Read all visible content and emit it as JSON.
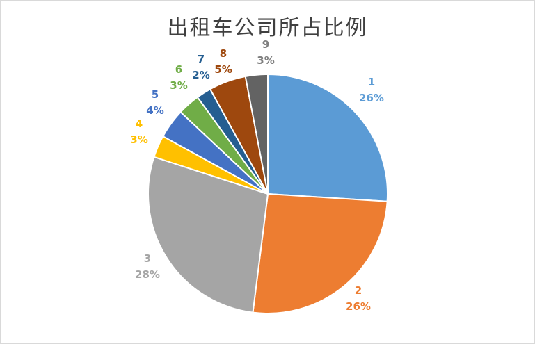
{
  "chart_data": {
    "type": "pie",
    "title": "出租车公司所占比例",
    "categories": [
      "1",
      "2",
      "3",
      "4",
      "5",
      "6",
      "7",
      "8",
      "9"
    ],
    "values": [
      26,
      26,
      28,
      3,
      4,
      3,
      2,
      5,
      3
    ],
    "labels": [
      "26%",
      "26%",
      "28%",
      "3%",
      "4%",
      "3%",
      "2%",
      "5%",
      "3%"
    ],
    "colors": [
      "#5B9BD5",
      "#ED7D31",
      "#A5A5A5",
      "#FFC000",
      "#4472C4",
      "#70AD47",
      "#255E91",
      "#9E480E",
      "#636363"
    ],
    "label_colors": [
      "#5B9BD5",
      "#ED7D31",
      "#A5A5A5",
      "#FFC000",
      "#4472C4",
      "#70AD47",
      "#255E91",
      "#9E480E",
      "#7F7F7F"
    ],
    "legend": "none"
  }
}
